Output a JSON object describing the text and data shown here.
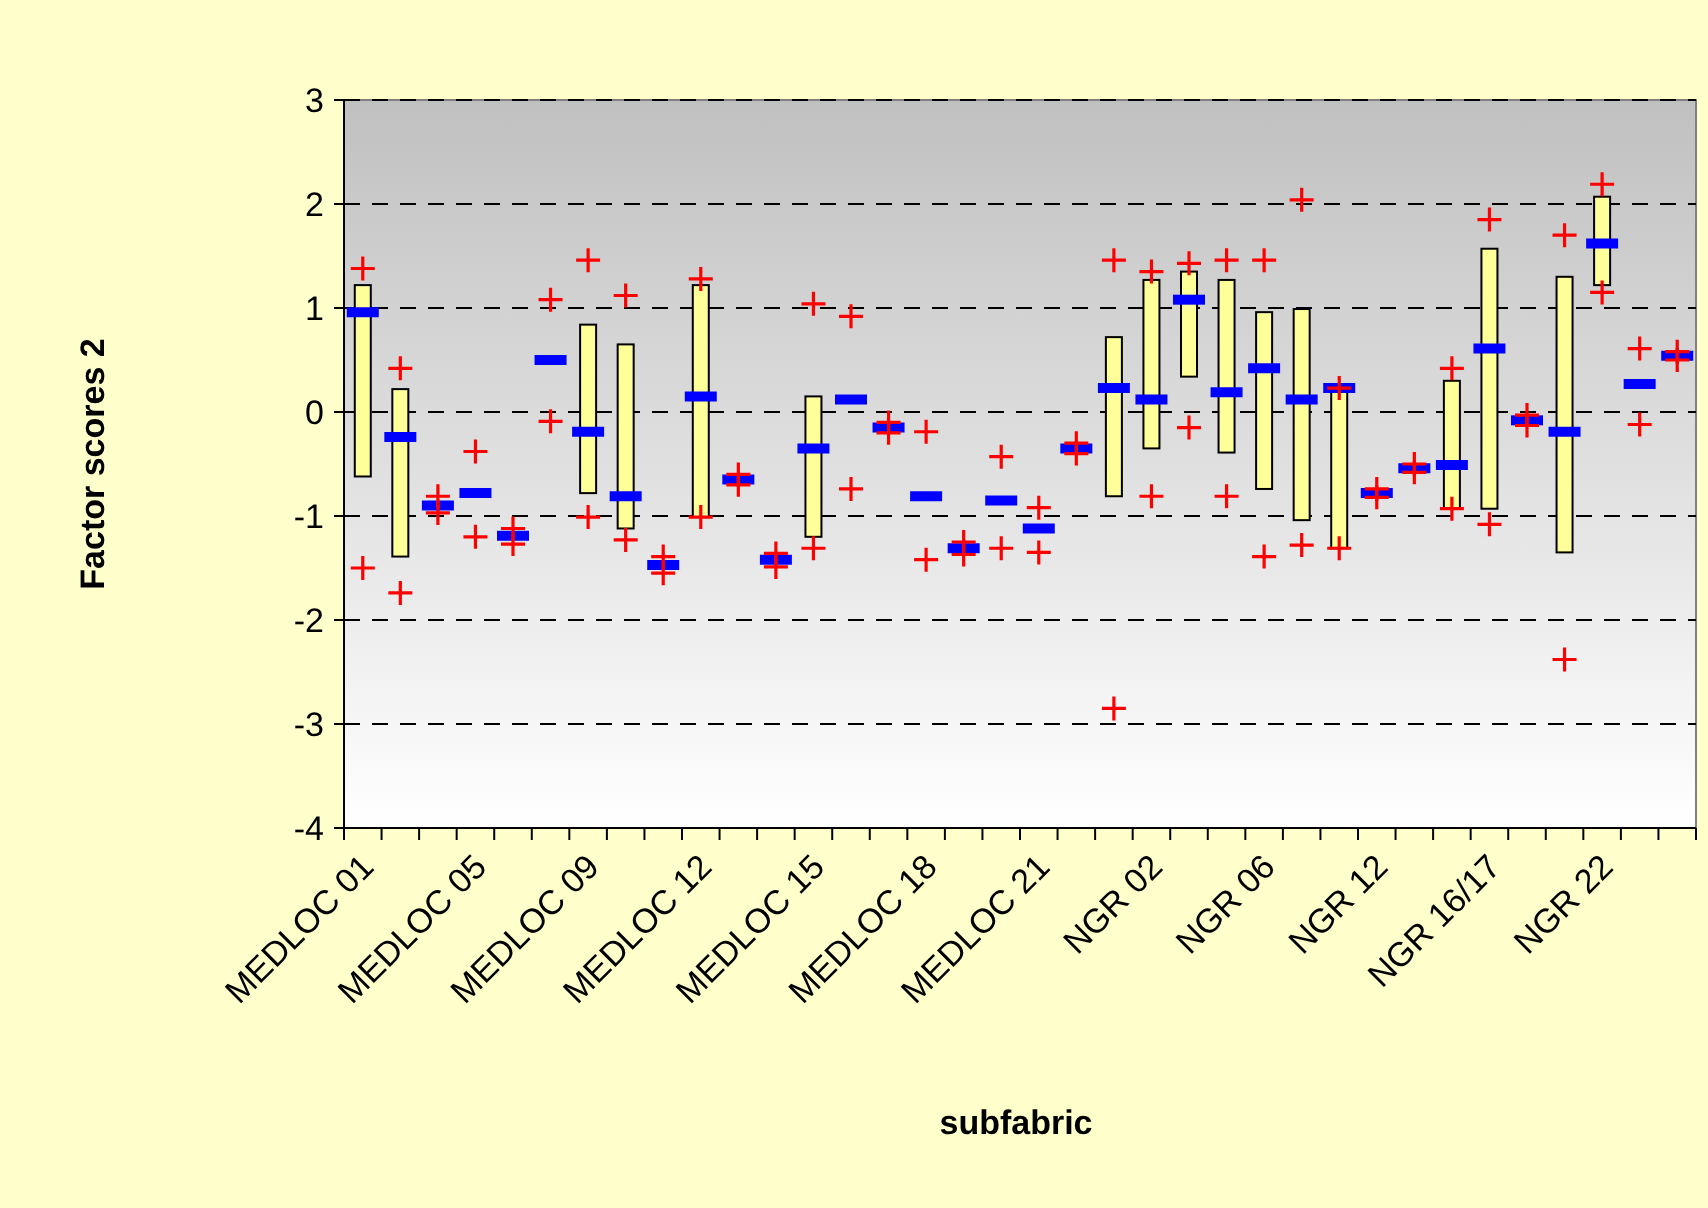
{
  "chart_data": {
    "type": "bar",
    "xlabel": "subfabric",
    "ylabel": "Factor scores 2",
    "categories": [
      "MEDLOC 01",
      null,
      null,
      "MEDLOC 05",
      null,
      null,
      "MEDLOC 09",
      null,
      null,
      "MEDLOC 12",
      null,
      null,
      "MEDLOC 15",
      null,
      null,
      "MEDLOC 18",
      null,
      null,
      "MEDLOC 21",
      null,
      null,
      "NGR 02",
      null,
      null,
      "NGR 06",
      null,
      null,
      "NGR 12",
      null,
      null,
      "NGR 16/17",
      null,
      null,
      "NGR 22",
      null,
      null
    ],
    "ylim": [
      -4,
      3
    ],
    "yticks": [
      -4,
      -3,
      -2,
      -1,
      0,
      1,
      2,
      3
    ],
    "grid": "y",
    "series": [
      {
        "color": "#ffff99",
        "base": [
          -0.62,
          -1.39,
          null,
          null,
          null,
          null,
          -0.78,
          -1.12,
          null,
          -1.01,
          null,
          null,
          -1.2,
          null,
          null,
          null,
          null,
          null,
          null,
          null,
          -0.81,
          -0.35,
          0.34,
          -0.39,
          -0.74,
          -1.04,
          -1.31,
          null,
          null,
          -0.93,
          -0.93,
          null,
          -1.35,
          1.22,
          null,
          null
        ],
        "values": [
          1.84,
          1.61,
          null,
          null,
          null,
          null,
          1.62,
          1.77,
          null,
          2.23,
          null,
          null,
          1.35,
          null,
          null,
          null,
          null,
          null,
          null,
          null,
          1.53,
          1.62,
          1.01,
          1.66,
          1.7,
          2.03,
          1.54,
          null,
          null,
          1.23,
          2.5,
          null,
          2.65,
          0.85,
          null,
          null
        ]
      },
      {
        "type": "scatter",
        "color": "#0000ff",
        "marker": "square",
        "values": [
          0.96,
          -0.24,
          -0.9,
          -0.78,
          -1.19,
          0.5,
          -0.19,
          -0.81,
          -1.47,
          0.15,
          -0.65,
          -1.42,
          -0.35,
          0.12,
          -0.15,
          -0.81,
          -1.31,
          -0.85,
          -1.12,
          -0.35,
          0.23,
          0.12,
          1.08,
          0.19,
          0.42,
          0.12,
          0.23,
          -0.78,
          -0.54,
          -0.51,
          0.61,
          -0.08,
          -0.19,
          1.62,
          0.27,
          0.54
        ]
      },
      {
        "type": "scatter",
        "color": "#ff0000",
        "marker": "cross",
        "values": [
          1.38,
          0.42,
          -0.81,
          -0.38,
          -1.12,
          1.08,
          1.46,
          1.12,
          -1.39,
          1.28,
          -0.6,
          -1.36,
          1.04,
          0.92,
          -0.1,
          -0.19,
          -1.25,
          -0.43,
          -0.92,
          -0.3,
          1.46,
          1.35,
          1.43,
          1.46,
          1.46,
          2.04,
          0.23,
          -0.74,
          -0.5,
          0.42,
          1.85,
          -0.03,
          1.7,
          2.19,
          0.61,
          0.58
        ]
      },
      {
        "type": "scatter",
        "color": "#ff0000",
        "marker": "cross",
        "values": [
          -1.5,
          -1.74,
          -0.97,
          -1.2,
          -1.27,
          -0.09,
          -1.01,
          -1.23,
          -1.55,
          -1.01,
          -0.7,
          -1.49,
          -1.31,
          -0.74,
          -0.2,
          -1.42,
          -1.37,
          -1.31,
          -1.35,
          -0.4,
          -2.85,
          -0.81,
          -0.15,
          -0.81,
          -1.39,
          -1.28,
          -1.31,
          -0.82,
          -0.58,
          -0.93,
          -1.08,
          -0.13,
          -2.38,
          1.15,
          -0.12,
          0.5
        ]
      }
    ]
  }
}
